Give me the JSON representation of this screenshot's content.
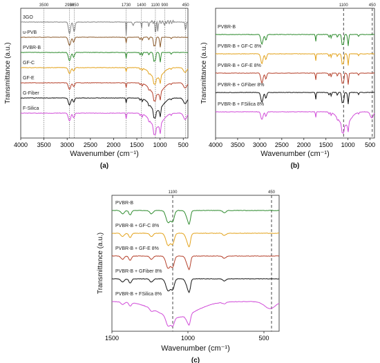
{
  "chart_data": [
    {
      "panel": "(a)",
      "type": "line",
      "xlabel": "Wavenumber (cm⁻¹)",
      "ylabel": "Transmittance (a.u.)",
      "xlim": [
        4000,
        400
      ],
      "x_reversed": true,
      "xticks": [
        "4000",
        "3500",
        "3000",
        "2500",
        "2000",
        "1500",
        "1000",
        "500"
      ],
      "reference_lines": [
        "3500",
        "2950",
        "2850",
        "1730",
        "1400",
        "1100",
        "900",
        "450"
      ],
      "series": [
        {
          "name": "3GO",
          "color": "#808080"
        },
        {
          "name": "u-PVB",
          "color": "#8B5A2B"
        },
        {
          "name": "PVBR-B",
          "color": "#2E8B2E"
        },
        {
          "name": "GF-C",
          "color": "#E3A21A"
        },
        {
          "name": "GF-E",
          "color": "#B5402A"
        },
        {
          "name": "G-Fiber",
          "color": "#111111"
        },
        {
          "name": "F-Silica",
          "color": "#D04BD8"
        }
      ]
    },
    {
      "panel": "(b)",
      "type": "line",
      "xlabel": "Wavenumber (cm⁻¹)",
      "ylabel": "Transmittance (a.u.)",
      "xlim": [
        4000,
        400
      ],
      "x_reversed": true,
      "xticks": [
        "4000",
        "3500",
        "3000",
        "2500",
        "2000",
        "1500",
        "1000",
        "500"
      ],
      "reference_lines": [
        "1100",
        "450"
      ],
      "series": [
        {
          "name": "PVBR-B",
          "color": "#2E8B2E"
        },
        {
          "name": "PVBR-B + GF-C 8%",
          "color": "#E3A21A"
        },
        {
          "name": "PVBR-B + GF-E 8%",
          "color": "#B5402A"
        },
        {
          "name": "PVBR-B + GFiber 8%",
          "color": "#111111"
        },
        {
          "name": "PVBR-B + FSilica 8%",
          "color": "#D04BD8"
        }
      ]
    },
    {
      "panel": "(c)",
      "type": "line",
      "xlabel": "Wavenumber (cm⁻¹)",
      "ylabel": "Transmittance (a.u.)",
      "xlim": [
        1500,
        400
      ],
      "x_reversed": true,
      "xticks": [
        "1500",
        "1000",
        "500"
      ],
      "reference_lines": [
        "1100",
        "450"
      ],
      "series": [
        {
          "name": "PVBR-B",
          "color": "#2E8B2E"
        },
        {
          "name": "PVBR-B + GF-C 8%",
          "color": "#E3A21A"
        },
        {
          "name": "PVBR-B + GF-E 8%",
          "color": "#B5402A"
        },
        {
          "name": "PVBR-B + GFiber 8%",
          "color": "#111111"
        },
        {
          "name": "PVBR-B + FSilica 8%",
          "color": "#D04BD8"
        }
      ]
    }
  ]
}
